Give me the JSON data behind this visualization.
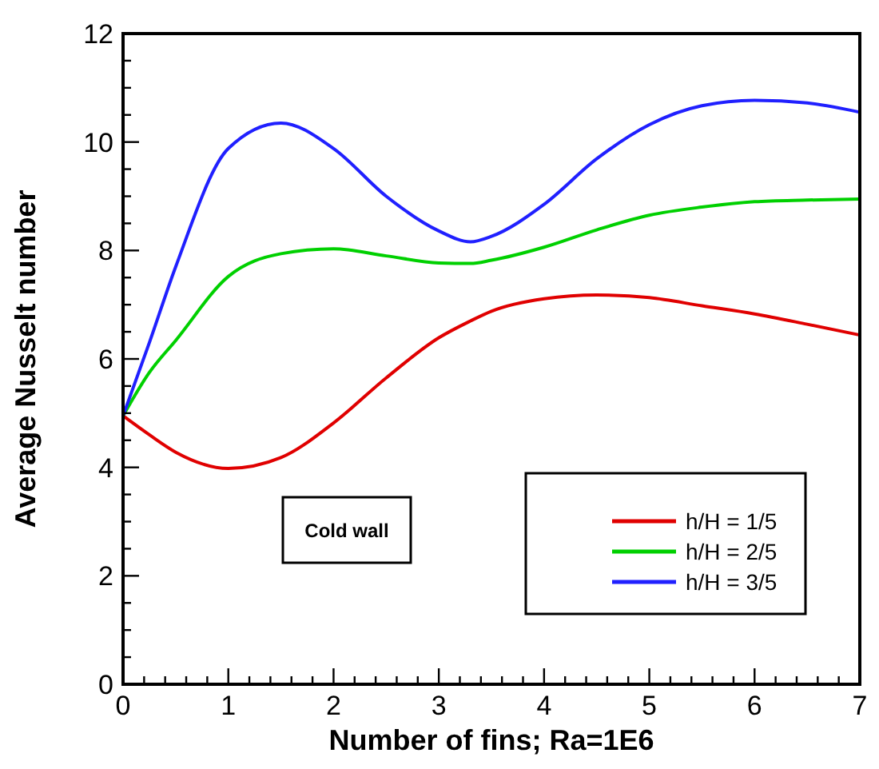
{
  "chart_data": {
    "type": "line",
    "xlabel": "Number of fins; Ra=1E6",
    "ylabel": "Average Nusselt number",
    "x": [
      0,
      0.25,
      0.5,
      1,
      1.5,
      2,
      2.5,
      3,
      3.3,
      3.5,
      4,
      4.5,
      5,
      5.5,
      6,
      6.5,
      7
    ],
    "series": [
      {
        "name": "h/H = 1/5",
        "color": "#e00000",
        "values": [
          4.95,
          4.6,
          4.28,
          3.98,
          4.18,
          4.82,
          5.65,
          6.39,
          6.7,
          6.88,
          7.11,
          7.18,
          7.13,
          6.98,
          6.83,
          6.64,
          6.44
        ]
      },
      {
        "name": "h/H = 2/5",
        "color": "#00d000",
        "values": [
          4.95,
          5.75,
          6.34,
          7.52,
          7.94,
          8.03,
          7.9,
          7.77,
          7.76,
          7.82,
          8.06,
          8.38,
          8.65,
          8.8,
          8.9,
          8.93,
          8.95
        ]
      },
      {
        "name": "h/H = 3/5",
        "color": "#2020ff",
        "values": [
          4.95,
          6.3,
          7.7,
          9.88,
          10.35,
          9.88,
          9.0,
          8.36,
          8.16,
          8.26,
          8.85,
          9.69,
          10.32,
          10.67,
          10.77,
          10.72,
          10.55
        ]
      }
    ],
    "xlim": [
      0,
      7
    ],
    "ylim": [
      0,
      12
    ],
    "xticks": [
      0,
      {
        "value": 0.2,
        "label": null
      },
      {
        "value": 0.4,
        "label": null
      },
      {
        "value": 0.6,
        "label": null
      },
      {
        "value": 0.8,
        "label": null
      },
      1,
      {
        "value": 1.2,
        "label": null
      },
      {
        "value": 1.4,
        "label": null
      },
      {
        "value": 1.6,
        "label": null
      },
      {
        "value": 1.8,
        "label": null
      },
      2,
      {
        "value": 2.2,
        "label": null
      },
      {
        "value": 2.4,
        "label": null
      },
      {
        "value": 2.6,
        "label": null
      },
      {
        "value": 2.8,
        "label": null
      },
      3,
      {
        "value": 3.2,
        "label": null
      },
      {
        "value": 3.4,
        "label": null
      },
      {
        "value": 3.6,
        "label": null
      },
      {
        "value": 3.8,
        "label": null
      },
      4,
      {
        "value": 4.2,
        "label": null
      },
      {
        "value": 4.4,
        "label": null
      },
      {
        "value": 4.6,
        "label": null
      },
      {
        "value": 4.8,
        "label": null
      },
      5,
      {
        "value": 5.2,
        "label": null
      },
      {
        "value": 5.4,
        "label": null
      },
      {
        "value": 5.6,
        "label": null
      },
      {
        "value": 5.8,
        "label": null
      },
      6,
      {
        "value": 6.2,
        "label": null
      },
      {
        "value": 6.4,
        "label": null
      },
      {
        "value": 6.6,
        "label": null
      },
      {
        "value": 6.8,
        "label": null
      },
      7
    ],
    "yticks": [
      0,
      {
        "value": 0.5,
        "label": null
      },
      {
        "value": 1,
        "label": null
      },
      {
        "value": 1.5,
        "label": null
      },
      2,
      {
        "value": 2.5,
        "label": null
      },
      {
        "value": 3,
        "label": null
      },
      {
        "value": 3.5,
        "label": null
      },
      4,
      {
        "value": 4.5,
        "label": null
      },
      {
        "value": 5,
        "label": null
      },
      {
        "value": 5.5,
        "label": null
      },
      6,
      {
        "value": 6.5,
        "label": null
      },
      {
        "value": 7,
        "label": null
      },
      {
        "value": 7.5,
        "label": null
      },
      8,
      {
        "value": 8.5,
        "label": null
      },
      {
        "value": 9,
        "label": null
      },
      {
        "value": 9.5,
        "label": null
      },
      10,
      {
        "value": 10.5,
        "label": null
      },
      {
        "value": 11,
        "label": null
      },
      {
        "value": 11.5,
        "label": null
      },
      12
    ],
    "annotations": [
      "Cold wall"
    ],
    "legend": "bottom right",
    "grid": false,
    "line_style": "solid",
    "marker": "none"
  }
}
